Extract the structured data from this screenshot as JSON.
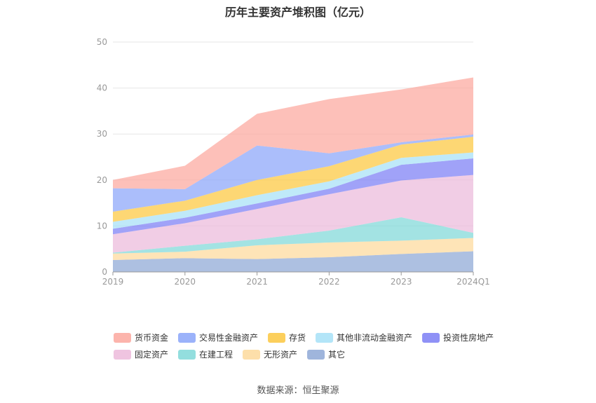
{
  "chart_data": {
    "type": "area",
    "title": "历年主要资产堆积图（亿元）",
    "stacked": true,
    "categories": [
      "2019",
      "2020",
      "2021",
      "2022",
      "2023",
      "2024Q1"
    ],
    "ylim": [
      0,
      50
    ],
    "yticks": [
      0,
      10,
      20,
      30,
      40,
      50
    ],
    "grid": true,
    "legend_position": "bottom",
    "series": [
      {
        "name": "其它",
        "color": "#8ea8d6",
        "values": [
          2.6,
          3.0,
          2.8,
          3.2,
          3.9,
          4.5
        ]
      },
      {
        "name": "无形资产",
        "color": "#fdd99b",
        "values": [
          1.4,
          1.4,
          3.0,
          3.2,
          2.9,
          2.9
        ]
      },
      {
        "name": "在建工程",
        "color": "#80d8d8",
        "values": [
          0.2,
          1.3,
          1.3,
          2.6,
          5.1,
          1.1
        ]
      },
      {
        "name": "固定资产",
        "color": "#ecbadb",
        "values": [
          4.0,
          4.9,
          6.6,
          7.9,
          8.0,
          12.6
        ]
      },
      {
        "name": "投资性房地产",
        "color": "#7b7ef5",
        "values": [
          1.2,
          1.2,
          1.2,
          1.2,
          3.4,
          3.6
        ]
      },
      {
        "name": "其他非流动金融资产",
        "color": "#a6e0f7",
        "values": [
          1.5,
          1.5,
          1.8,
          1.6,
          1.5,
          1.3
        ]
      },
      {
        "name": "存货",
        "color": "#fcc73f",
        "values": [
          2.2,
          2.2,
          3.3,
          3.3,
          2.9,
          3.4
        ]
      },
      {
        "name": "交易性金融资产",
        "color": "#8aa5f9",
        "values": [
          5.1,
          2.5,
          7.5,
          2.8,
          0.5,
          0.5
        ]
      },
      {
        "name": "货币资金",
        "color": "#fca79e",
        "values": [
          1.8,
          5.1,
          6.9,
          11.8,
          11.5,
          12.4
        ]
      }
    ],
    "legend_order": [
      "货币资金",
      "交易性金融资产",
      "存货",
      "其他非流动金融资产",
      "投资性房地产",
      "固定资产",
      "在建工程",
      "无形资产",
      "其它"
    ]
  },
  "source_text": "数据来源：恒生聚源"
}
